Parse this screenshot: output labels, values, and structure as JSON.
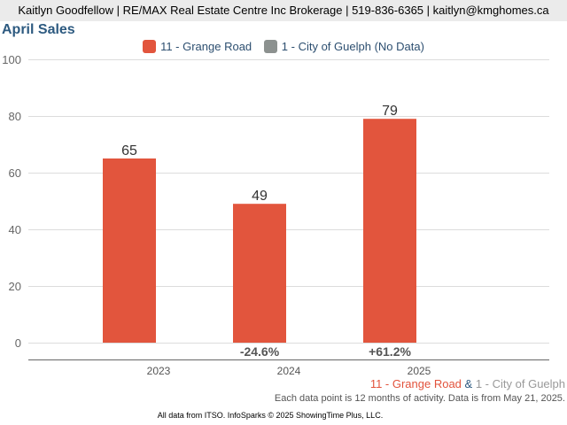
{
  "header": {
    "contact": "Kaitlyn Goodfellow | RE/MAX Real Estate Centre Inc Brokerage | 519-836-6365 | kaitlyn@kmghomes.ca"
  },
  "chart_data": {
    "type": "bar",
    "title": "April Sales",
    "categories": [
      "2023",
      "2024",
      "2025"
    ],
    "series": [
      {
        "name": "11 - Grange Road",
        "values": [
          65,
          49,
          79
        ],
        "color": "#e2553d"
      },
      {
        "name": "1 - City of Guelph (No Data)",
        "values": [
          null,
          null,
          null
        ],
        "color": "#8c918f"
      }
    ],
    "data_labels": [
      "65",
      "49",
      "79"
    ],
    "change_labels": [
      "",
      "-24.6%",
      "+61.2%"
    ],
    "yticks": [
      "0",
      "20",
      "40",
      "60",
      "80",
      "100"
    ],
    "ytick_values": [
      0,
      20,
      40,
      60,
      80,
      100
    ],
    "ylim": [
      0,
      100
    ],
    "xlabel": "",
    "ylabel": "",
    "grid": true,
    "legend_position": "top-center"
  },
  "footer": {
    "series1": "11 - Grange Road",
    "amp": "&",
    "series2": "1 - City of Guelph",
    "note": "Each data point is 12 months of activity. Data is from May 21, 2025.",
    "attribution": "All data from ITSO. InfoSparks © 2025 ShowingTime Plus, LLC."
  }
}
